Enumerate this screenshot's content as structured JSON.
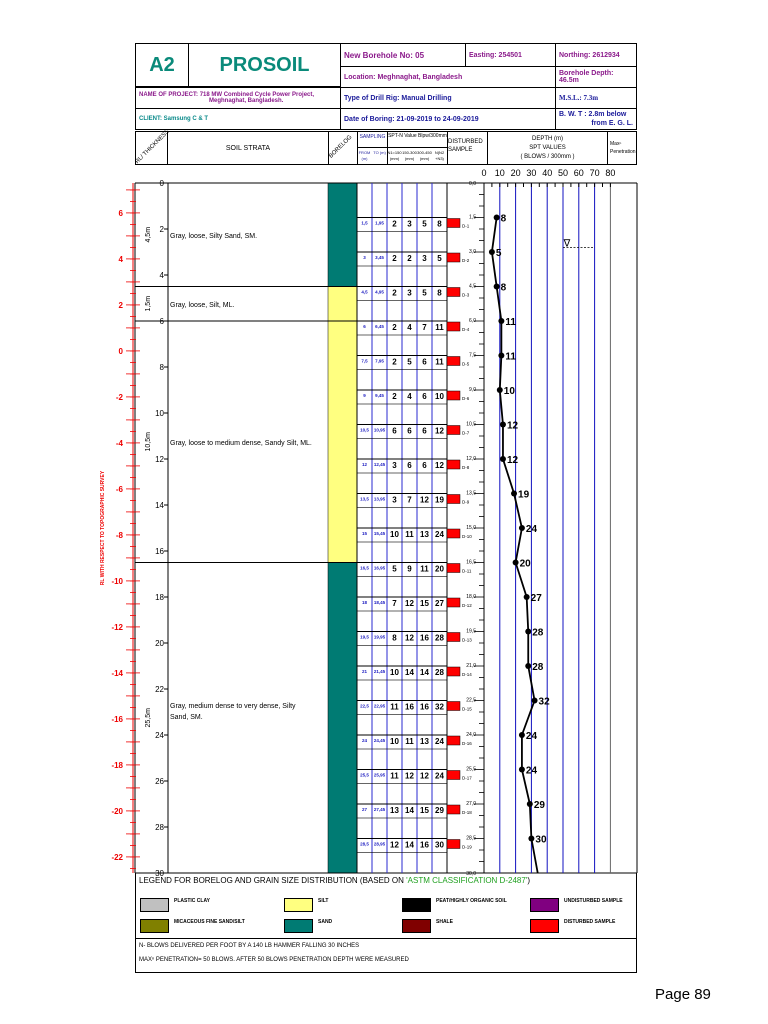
{
  "header": {
    "code": "A2",
    "brand": "PROSOIL",
    "borehole": "New Borehole No: 05",
    "easting": "Easting: 254501",
    "northing": "Northing: 2612934",
    "location": "Location: Meghnaghat, Bangladesh",
    "depth": "Borehole Depth: 46.5m",
    "project_label": "NAME OF PROJECT:",
    "project_1": "718 MW Combined Cycle Power Project,",
    "project_2": "Meghnaghat, Bangladesh.",
    "drill_rig": "Type of Drill Rig: Manual Drilling",
    "msl": "M.S.L.: 7.3m",
    "client": "CLIENT: Samsung C & T",
    "date": "Date of Boring: 21-09-2019 to 24-09-2019",
    "bwt_1": "B. W. T :  2.8m below",
    "bwt_2": "from E. G. L."
  },
  "columns": {
    "rl": "RL/ THICKNESS",
    "strata": "SOIL STRATA",
    "borelog": "BORELOG",
    "sampling": "SAMPLING",
    "from": "FROM (m)",
    "to": "TO (m)",
    "spt": "SPT-N Value Blpw/300mm",
    "n1": "N1=150 (mm)",
    "n2": "150-300 (mm)",
    "n3": "300-450 (mm)",
    "n": "N(N2 +N3)",
    "disturbed": "DISTURBED SAMPLE",
    "depth_1": "DEPTH  (m)",
    "depth_2": "SPT VALUES",
    "depth_3": "( BLOWS / 300mm )",
    "max": "Maxⁿ Penetration"
  },
  "side_label": "RL WITH RESPECT TO TOPOGRAPHIC SURVEY",
  "rl_ticks": [
    "6",
    "4",
    "2",
    "0",
    "-2",
    "-4",
    "-6",
    "-8",
    "-10",
    "-12",
    "-14",
    "-16",
    "-18",
    "-20",
    "-22"
  ],
  "depth_ticks": [
    "0",
    "2",
    "4",
    "6",
    "8",
    "10",
    "12",
    "14",
    "16",
    "18",
    "20",
    "22",
    "24",
    "26",
    "28",
    "30"
  ],
  "layers": [
    {
      "top": 0,
      "bottom": 4.5,
      "thickness": "4,5m",
      "description": "Gray, loose, Silty Sand, SM.",
      "soil": "sand"
    },
    {
      "top": 4.5,
      "bottom": 6,
      "thickness": "1,5m",
      "description": "Gray, loose, Silt, ML.",
      "soil": "silt"
    },
    {
      "top": 6,
      "bottom": 16.5,
      "thickness": "10,5m",
      "description": "Gray, loose to medium dense, Sandy Silt, ML.",
      "soil": "silt"
    },
    {
      "top": 16.5,
      "bottom": 30,
      "thickness": "25,5m",
      "description": "Gray, medium dense to very dense, Silty Sand, SM.",
      "soil": "sand"
    }
  ],
  "soil_colors": {
    "sand": "#007b73",
    "silt": "#ffff80",
    "sample": "#ff0000"
  },
  "spt_scale": [
    "0",
    "10",
    "20",
    "30",
    "40",
    "50",
    "60",
    "70",
    "80"
  ],
  "water_level_depth": 2.8,
  "samples": [
    {
      "depth": 1.5,
      "from": "1,5",
      "to": "1,95",
      "n1": "2",
      "n2": "3",
      "n3": "5",
      "n": "8",
      "id": "D-1",
      "label": "1,5"
    },
    {
      "depth": 3,
      "from": "3",
      "to": "3,45",
      "n1": "2",
      "n2": "2",
      "n3": "3",
      "n": "5",
      "id": "D-2",
      "label": "3,0"
    },
    {
      "depth": 4.5,
      "from": "4,5",
      "to": "4,95",
      "n1": "2",
      "n2": "3",
      "n3": "5",
      "n": "8",
      "id": "D-3",
      "label": "4,5"
    },
    {
      "depth": 6,
      "from": "6",
      "to": "6,45",
      "n1": "2",
      "n2": "4",
      "n3": "7",
      "n": "11",
      "id": "D-4",
      "label": "6,0"
    },
    {
      "depth": 7.5,
      "from": "7,5",
      "to": "7,95",
      "n1": "2",
      "n2": "5",
      "n3": "6",
      "n": "11",
      "id": "D-5",
      "label": "7,5"
    },
    {
      "depth": 9,
      "from": "9",
      "to": "9,45",
      "n1": "2",
      "n2": "4",
      "n3": "6",
      "n": "10",
      "id": "D-6",
      "label": "9,0"
    },
    {
      "depth": 10.5,
      "from": "10,5",
      "to": "10,95",
      "n1": "6",
      "n2": "6",
      "n3": "6",
      "n": "12",
      "id": "D-7",
      "label": "10,5"
    },
    {
      "depth": 12,
      "from": "12",
      "to": "12,45",
      "n1": "3",
      "n2": "6",
      "n3": "6",
      "n": "12",
      "id": "D-8",
      "label": "12,0"
    },
    {
      "depth": 13.5,
      "from": "13,5",
      "to": "13,95",
      "n1": "3",
      "n2": "7",
      "n3": "12",
      "n": "19",
      "id": "D-9",
      "label": "13,5"
    },
    {
      "depth": 15,
      "from": "15",
      "to": "15,45",
      "n1": "10",
      "n2": "11",
      "n3": "13",
      "n": "24",
      "id": "D-10",
      "label": "15,0"
    },
    {
      "depth": 16.5,
      "from": "16,5",
      "to": "16,95",
      "n1": "5",
      "n2": "9",
      "n3": "11",
      "n": "20",
      "id": "D-11",
      "label": "16,5"
    },
    {
      "depth": 18,
      "from": "18",
      "to": "18,45",
      "n1": "7",
      "n2": "12",
      "n3": "15",
      "n": "27",
      "id": "D-12",
      "label": "18,0"
    },
    {
      "depth": 19.5,
      "from": "19,5",
      "to": "19,95",
      "n1": "8",
      "n2": "12",
      "n3": "16",
      "n": "28",
      "id": "D-13",
      "label": "19,5"
    },
    {
      "depth": 21,
      "from": "21",
      "to": "21,45",
      "n1": "10",
      "n2": "14",
      "n3": "14",
      "n": "28",
      "id": "D-14",
      "label": "21,0"
    },
    {
      "depth": 22.5,
      "from": "22,5",
      "to": "22,95",
      "n1": "11",
      "n2": "16",
      "n3": "16",
      "n": "32",
      "id": "D-15",
      "label": "22,5"
    },
    {
      "depth": 24,
      "from": "24",
      "to": "24,45",
      "n1": "10",
      "n2": "11",
      "n3": "13",
      "n": "24",
      "id": "D-16",
      "label": "24,0"
    },
    {
      "depth": 25.5,
      "from": "25,5",
      "to": "25,95",
      "n1": "11",
      "n2": "12",
      "n3": "12",
      "n": "24",
      "id": "D-17",
      "label": "25,5"
    },
    {
      "depth": 27,
      "from": "27",
      "to": "27,45",
      "n1": "13",
      "n2": "14",
      "n3": "15",
      "n": "29",
      "id": "D-18",
      "label": "27,0"
    },
    {
      "depth": 28.5,
      "from": "28,5",
      "to": "28,95",
      "n1": "12",
      "n2": "14",
      "n3": "16",
      "n": "30",
      "id": "D-19",
      "label": "28,5"
    }
  ],
  "depth_top_label": "0,0",
  "depth_bottom_label": "30,0",
  "legend": {
    "title_prefix": "LEGEND FOR BORELOG AND GRAIN SIZE DISTRIBUTION (BASED ON ",
    "title_ref": "'ASTM CLASSIFICATION D-2487'",
    "title_suffix": ")",
    "items": [
      {
        "label": "PLASTIC CLAY",
        "color": "#c0c0c0"
      },
      {
        "label": "SILT",
        "color": "#ffff80"
      },
      {
        "label": "PEAT/HIGHLY ORGANIC SOIL",
        "color": "#000000"
      },
      {
        "label": "UNDISTURBED SAMPLE",
        "color": "#800080"
      },
      {
        "label": "MICACEOUS FINE SAND/SILT",
        "color": "#808000"
      },
      {
        "label": "SAND",
        "color": "#007b73"
      },
      {
        "label": "SHALE",
        "color": "#800000"
      },
      {
        "label": "DISTURBED SAMPLE",
        "color": "#ff0000"
      }
    ]
  },
  "notes": [
    "N- BLOWS DELIVERED PER FOOT BY A 140 LB HAMMER FALLING 30 INCHES",
    "MAXⁿ PENETRATION= 50 BLOWS. AFTER 50 BLOWS PENETRATION DEPTH WERE MEASURED"
  ],
  "page_number": "Page 89"
}
